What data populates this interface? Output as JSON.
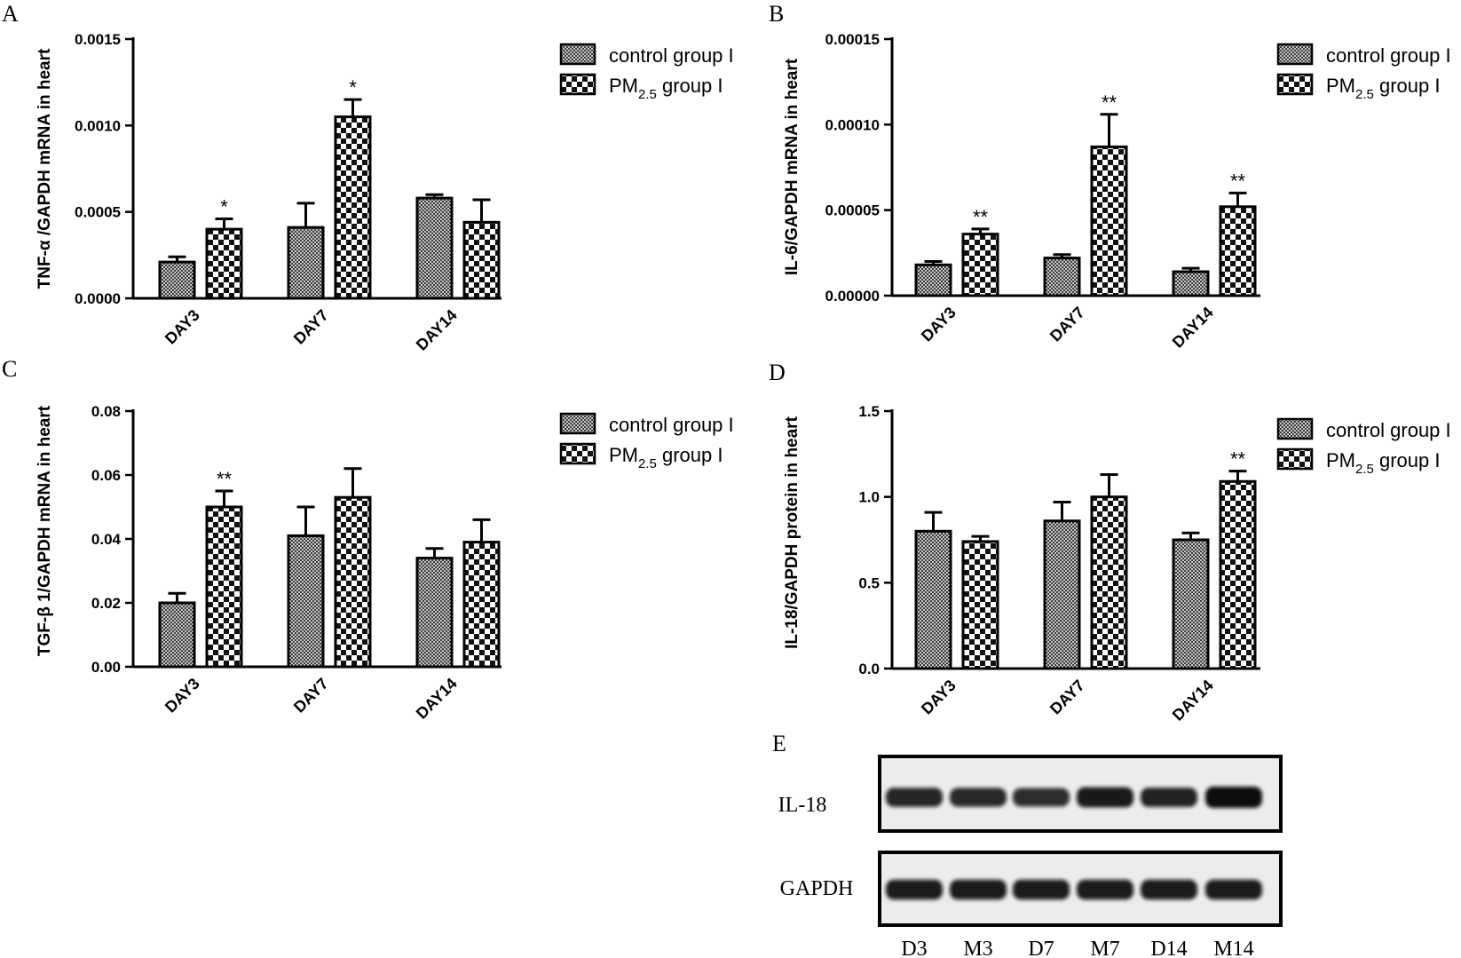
{
  "styles": {
    "bar_edge": "#000000",
    "check_dark": "#111111",
    "check_light": "#ffffff",
    "fine_dark": "#3a3a3a"
  },
  "chart_data": [
    {
      "panel": "A",
      "type": "bar",
      "ylabel": "TNF-α /GAPDH mRNA in heart",
      "categories": [
        "DAY3",
        "DAY7",
        "DAY14"
      ],
      "ylim": [
        0,
        0.0015
      ],
      "yticks": [
        "0.0000",
        "0.0005",
        "0.0010",
        "0.0015"
      ],
      "ytick_values": [
        0,
        0.0005,
        0.001,
        0.0015
      ],
      "series": [
        {
          "name": "control group I",
          "values": [
            0.00021,
            0.00041,
            0.00058
          ],
          "errors": [
            3e-05,
            0.00014,
            2e-05
          ]
        },
        {
          "name": "PM2.5 group I",
          "values": [
            0.0004,
            0.00105,
            0.00044
          ],
          "errors": [
            6e-05,
            0.0001,
            0.00013
          ]
        }
      ],
      "significance": [
        [
          "",
          "*"
        ],
        [
          "",
          "*"
        ],
        [
          "",
          ""
        ]
      ],
      "legend": [
        {
          "pre": "control group I",
          "sub": "",
          "post": ""
        },
        {
          "pre": "PM",
          "sub": "2.5",
          "post": " group  I"
        }
      ]
    },
    {
      "panel": "B",
      "type": "bar",
      "ylabel": "IL-6/GAPDH mRNA in heart",
      "categories": [
        "DAY3",
        "DAY7",
        "DAY14"
      ],
      "ylim": [
        0,
        0.00015
      ],
      "yticks": [
        "0.00000",
        "0.00005",
        "0.00010",
        "0.00015"
      ],
      "ytick_values": [
        0,
        5e-05,
        0.0001,
        0.00015
      ],
      "series": [
        {
          "name": "control group I",
          "values": [
            1.8e-05,
            2.2e-05,
            1.4e-05
          ],
          "errors": [
            2e-06,
            2e-06,
            2e-06
          ]
        },
        {
          "name": "PM2.5 group I",
          "values": [
            3.6e-05,
            8.7e-05,
            5.2e-05
          ],
          "errors": [
            3e-06,
            1.9e-05,
            8e-06
          ]
        }
      ],
      "significance": [
        [
          "",
          "**"
        ],
        [
          "",
          "**"
        ],
        [
          "",
          "**"
        ]
      ],
      "legend": [
        {
          "pre": "control group I",
          "sub": "",
          "post": ""
        },
        {
          "pre": "PM",
          "sub": "2.5",
          "post": " group  I"
        }
      ]
    },
    {
      "panel": "C",
      "type": "bar",
      "ylabel": "TGF-β 1/GAPDH mRNA in heart",
      "categories": [
        "DAY3",
        "DAY7",
        "DAY14"
      ],
      "ylim": [
        0,
        0.08
      ],
      "yticks": [
        "0.00",
        "0.02",
        "0.04",
        "0.06",
        "0.08"
      ],
      "ytick_values": [
        0,
        0.02,
        0.04,
        0.06,
        0.08
      ],
      "series": [
        {
          "name": "control group I",
          "values": [
            0.02,
            0.041,
            0.034
          ],
          "errors": [
            0.003,
            0.009,
            0.003
          ]
        },
        {
          "name": "PM2.5 group I",
          "values": [
            0.05,
            0.053,
            0.039
          ],
          "errors": [
            0.005,
            0.009,
            0.007
          ]
        }
      ],
      "significance": [
        [
          "",
          "**"
        ],
        [
          "",
          ""
        ],
        [
          "",
          ""
        ]
      ],
      "legend": [
        {
          "pre": "control group I",
          "sub": "",
          "post": ""
        },
        {
          "pre": "PM",
          "sub": "2.5",
          "post": " group  I"
        }
      ]
    },
    {
      "panel": "D",
      "type": "bar",
      "ylabel": "IL-18/GAPDH protein in heart",
      "categories": [
        "DAY3",
        "DAY7",
        "DAY14"
      ],
      "ylim": [
        0,
        1.5
      ],
      "yticks": [
        "0.0",
        "0.5",
        "1.0",
        "1.5"
      ],
      "ytick_values": [
        0,
        0.5,
        1.0,
        1.5
      ],
      "series": [
        {
          "name": "control group I",
          "values": [
            0.8,
            0.86,
            0.75
          ],
          "errors": [
            0.11,
            0.11,
            0.04
          ]
        },
        {
          "name": "PM2.5 group I",
          "values": [
            0.74,
            1.0,
            1.09
          ],
          "errors": [
            0.03,
            0.13,
            0.06
          ]
        }
      ],
      "significance": [
        [
          "",
          ""
        ],
        [
          "",
          ""
        ],
        [
          "",
          "**"
        ]
      ],
      "legend": [
        {
          "pre": "control group I",
          "sub": "",
          "post": ""
        },
        {
          "pre": "PM",
          "sub": "2.5",
          "post": " group  I"
        }
      ]
    }
  ],
  "blot": {
    "panel": "E",
    "rows": [
      {
        "label": "IL-18",
        "intensity": [
          0.75,
          0.72,
          0.68,
          0.88,
          0.78,
          1.0
        ]
      },
      {
        "label": "GAPDH",
        "intensity": [
          0.85,
          0.85,
          0.85,
          0.85,
          0.85,
          0.85
        ]
      }
    ],
    "lanes": [
      "D3",
      "M3",
      "D7",
      "M7",
      "D14",
      "M14"
    ]
  }
}
